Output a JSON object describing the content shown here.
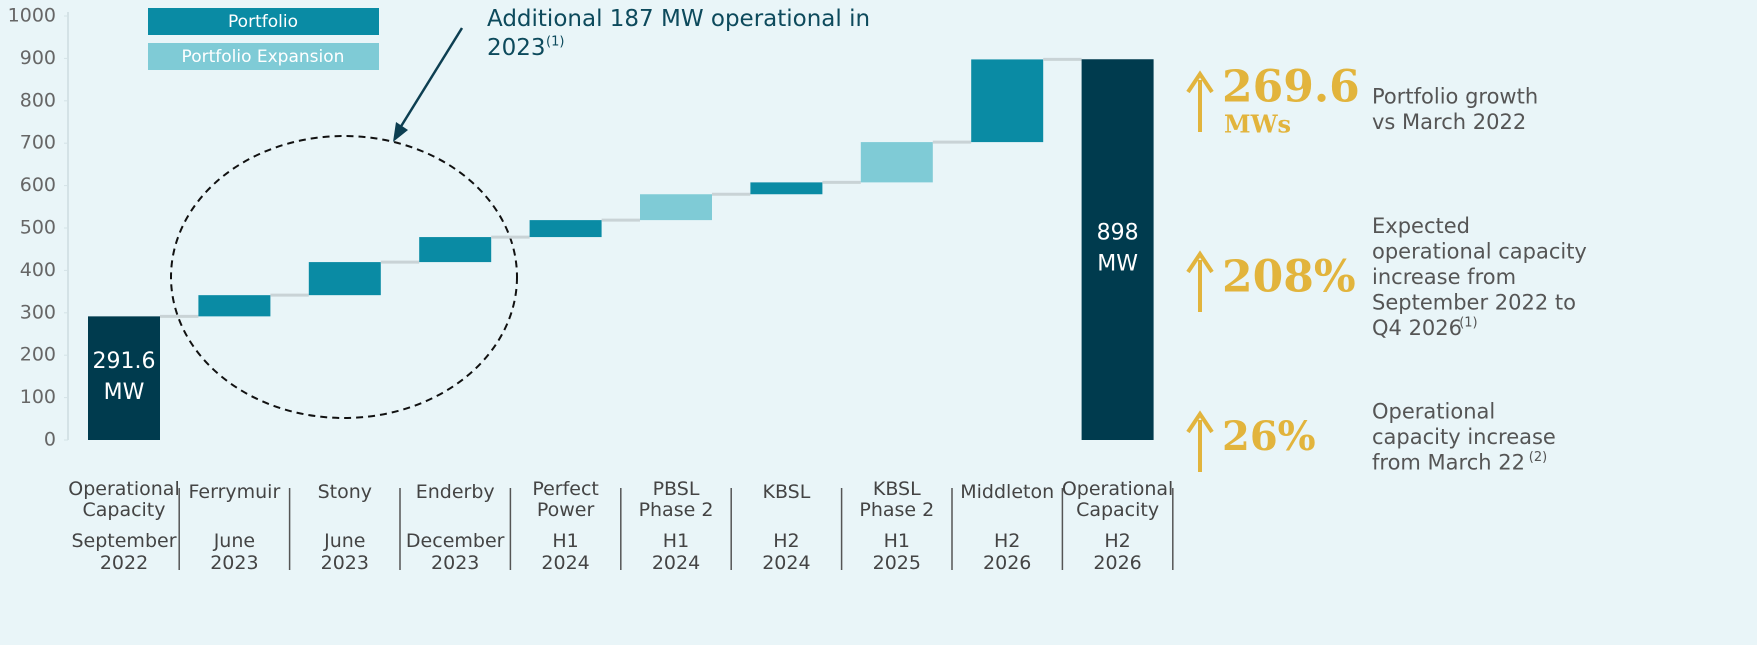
{
  "chart_data": {
    "type": "waterfall",
    "annotation": "Additional 187 MW operational in\n2023",
    "annotation_note": "(1)",
    "categories": [
      "Operational\nCapacity",
      "Ferrymuir",
      "Stony",
      "Enderby",
      "Perfect\nPower",
      "PBSL\nPhase 2",
      "KBSL",
      "KBSL\nPhase 2",
      "Middleton",
      "Operational\nCapacity"
    ],
    "periods": [
      "September 2022",
      "June 2023",
      "June 2023",
      "December 2023",
      "H1 2024",
      "H1 2024",
      "H2 2024",
      "H1 2025",
      "H2 2026",
      "H2 2026"
    ],
    "values": [
      291.6,
      50,
      78,
      59,
      40,
      61,
      28,
      95,
      195,
      898
    ],
    "value_labels": [
      "291.6\nMW",
      null,
      null,
      null,
      null,
      null,
      null,
      null,
      null,
      "898\nMW"
    ],
    "kinds": [
      "total",
      "Portfolio",
      "Portfolio",
      "Portfolio",
      "Portfolio",
      "Portfolio Expansion",
      "Portfolio",
      "Portfolio Expansion",
      "Portfolio",
      "total"
    ],
    "legend": [
      {
        "name": "Portfolio",
        "color": "#0a8ba4"
      },
      {
        "name": "Portfolio Expansion",
        "color": "#7fcbd6"
      }
    ],
    "total_color": "#003b4e",
    "ylim": [
      0,
      1000
    ],
    "yticks": [
      0,
      100,
      200,
      300,
      400,
      500,
      600,
      700,
      800,
      900,
      1000
    ],
    "grid": false,
    "highlights": [
      {
        "value": "269.6",
        "unit": "MWs",
        "text": "Portfolio growth\nvs March 2022",
        "note": null
      },
      {
        "value": "208%",
        "unit": null,
        "text": "Expected\noperational capacity\nincrease from\nSeptember 2022 to\nQ4 2026",
        "note": "(1)"
      },
      {
        "value": "26%",
        "unit": null,
        "text": "Operational\ncapacity increase\nfrom March 22",
        "note": "(2)"
      }
    ]
  }
}
